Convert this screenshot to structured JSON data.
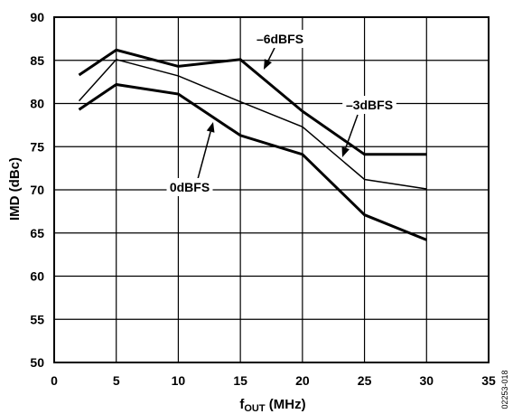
{
  "figure_id": "02253-018",
  "chart_data": {
    "type": "line",
    "xlabel_main": "f",
    "xlabel_sub": "OUT",
    "xlabel_unit": " (MHz)",
    "ylabel": "IMD (dBc)",
    "xlim": [
      0,
      35
    ],
    "ylim": [
      50,
      90
    ],
    "xticks": [
      0,
      5,
      10,
      15,
      20,
      25,
      30,
      35
    ],
    "yticks": [
      50,
      55,
      60,
      65,
      70,
      75,
      80,
      85,
      90
    ],
    "grid": true,
    "series": [
      {
        "name": "–6dBFS",
        "style": "bold",
        "x": [
          2,
          5,
          10,
          15,
          20,
          25,
          30
        ],
        "y": [
          83.3,
          86.2,
          84.3,
          85.1,
          79.1,
          74.1,
          74.1
        ]
      },
      {
        "name": "–3dBFS",
        "style": "thin",
        "x": [
          2,
          5,
          10,
          15,
          20,
          25,
          30
        ],
        "y": [
          80.3,
          85.1,
          83.2,
          80.2,
          77.3,
          71.2,
          70.1
        ]
      },
      {
        "name": "0dBFS",
        "style": "bold",
        "x": [
          2,
          5,
          10,
          15,
          20,
          25,
          30
        ],
        "y": [
          79.3,
          82.2,
          81.1,
          76.3,
          74.1,
          67.1,
          64.2
        ]
      }
    ],
    "annotations": [
      {
        "text": "–6dBFS",
        "series": 0
      },
      {
        "text": "–3dBFS",
        "series": 1
      },
      {
        "text": "0dBFS",
        "series": 2
      }
    ]
  }
}
